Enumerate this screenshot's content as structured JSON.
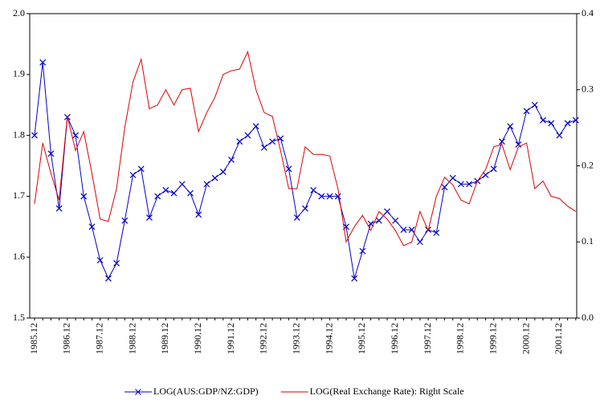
{
  "chart_data": {
    "type": "line",
    "categories": [
      "1985.12",
      null,
      null,
      null,
      "1986.12",
      null,
      null,
      null,
      "1987.12",
      null,
      null,
      null,
      "1988.12",
      null,
      null,
      null,
      "1989.12",
      null,
      null,
      null,
      "1990.12",
      null,
      null,
      null,
      "1991.12",
      null,
      null,
      null,
      "1992.12",
      null,
      null,
      null,
      "1993.12",
      null,
      null,
      null,
      "1994.12",
      null,
      null,
      null,
      "1995.12",
      null,
      null,
      null,
      "1996.12",
      null,
      null,
      null,
      "1997.12",
      null,
      null,
      null,
      "1998.12",
      null,
      null,
      null,
      "1999.12",
      null,
      null,
      null,
      "2000.12",
      null,
      null,
      null,
      "2001.12",
      null,
      null
    ],
    "series": [
      {
        "name": "LOG(AUS:GDP/NZ:GDP)",
        "color": "#0000cc",
        "axis": "y",
        "values": [
          1.8,
          1.92,
          1.77,
          1.68,
          1.83,
          1.8,
          1.7,
          1.65,
          1.595,
          1.565,
          1.59,
          1.66,
          1.735,
          1.745,
          1.665,
          1.7,
          1.71,
          1.705,
          1.72,
          1.705,
          1.67,
          1.72,
          1.73,
          1.74,
          1.76,
          1.79,
          1.8,
          1.815,
          1.78,
          1.79,
          1.795,
          1.745,
          1.665,
          1.68,
          1.71,
          1.7,
          1.7,
          1.7,
          1.65,
          1.565,
          1.61,
          1.655,
          1.66,
          1.675,
          1.66,
          1.645,
          1.645,
          1.625,
          1.645,
          1.64,
          1.715,
          1.73,
          1.72,
          1.72,
          1.725,
          1.735,
          1.745,
          1.79,
          1.815,
          1.785,
          1.84,
          1.85,
          1.825,
          1.82,
          1.8,
          1.82,
          1.825
        ]
      },
      {
        "name": "LOG(Real Exchange Rate): Right Scale",
        "color": "#dd0000",
        "axis": "y2",
        "values": [
          0.15,
          0.23,
          0.19,
          0.155,
          0.265,
          0.22,
          0.245,
          0.19,
          0.13,
          0.127,
          0.17,
          0.25,
          0.31,
          0.34,
          0.275,
          0.28,
          0.3,
          0.28,
          0.3,
          0.302,
          0.245,
          0.27,
          0.29,
          0.32,
          0.325,
          0.327,
          0.35,
          0.3,
          0.27,
          0.265,
          0.22,
          0.17,
          0.17,
          0.225,
          0.215,
          0.215,
          0.213,
          0.17,
          0.1,
          0.12,
          0.135,
          0.115,
          0.14,
          0.13,
          0.115,
          0.095,
          0.1,
          0.14,
          0.115,
          0.16,
          0.185,
          0.175,
          0.155,
          0.15,
          0.18,
          0.195,
          0.225,
          0.228,
          0.195,
          0.225,
          0.23,
          0.17,
          0.18,
          0.16,
          0.157,
          0.147,
          0.14
        ]
      }
    ],
    "ylim": [
      1.5,
      2.0
    ],
    "yticks": [
      1.5,
      1.6,
      1.7,
      1.8,
      1.9,
      {
        "value": 2,
        "label": "2.0"
      }
    ],
    "y2lim": [
      0,
      0.4
    ],
    "y2ticks": [
      {
        "value": 0,
        "label": "0.0"
      },
      0.1,
      0.2,
      0.3,
      0.4
    ],
    "grid": false,
    "legend": "bottom"
  }
}
